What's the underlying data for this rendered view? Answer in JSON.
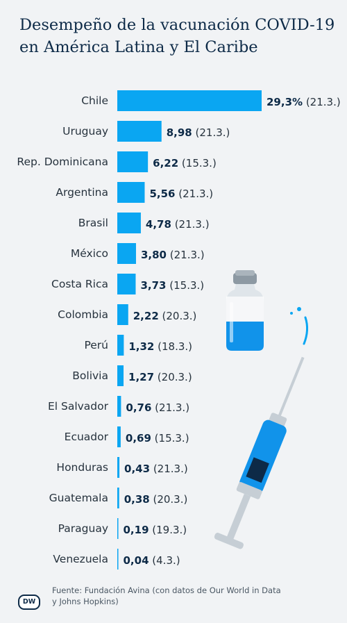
{
  "title_line1": "Desempeño de la vacunación COVID-19",
  "title_line2": "en América Latina y El Caribe",
  "source_line1": "Fuente: Fundación Avina (con datos de Our World in Data",
  "source_line2": "y Johns Hopkins)",
  "logo_text": "DW",
  "colors": {
    "bar": "#0aa6f2",
    "text_dark": "#0d2a47",
    "background": "#f1f3f5"
  },
  "chart_data": {
    "type": "bar",
    "orientation": "horizontal",
    "categories": [
      "Chile",
      "Uruguay",
      "Rep. Dominicana",
      "Argentina",
      "Brasil",
      "México",
      "Costa Rica",
      "Colombia",
      "Perú",
      "Bolivia",
      "El Salvador",
      "Ecuador",
      "Honduras",
      "Guatemala",
      "Paraguay",
      "Venezuela"
    ],
    "values": [
      29.3,
      8.98,
      6.22,
      5.56,
      4.78,
      3.8,
      3.73,
      2.22,
      1.32,
      1.27,
      0.76,
      0.69,
      0.43,
      0.38,
      0.19,
      0.04
    ],
    "value_labels": [
      "29,3%",
      "8,98",
      "6,22",
      "5,56",
      "4,78",
      "3,80",
      "3,73",
      "2,22",
      "1,32",
      "1,27",
      "0,76",
      "0,69",
      "0,43",
      "0,38",
      "0,19",
      "0,04"
    ],
    "dates": [
      "(21.3.)",
      "(21.3.)",
      "(15.3.)",
      "(21.3.)",
      "(21.3.)",
      "(21.3.)",
      "(15.3.)",
      "(20.3.)",
      "(18.3.)",
      "(20.3.)",
      "(21.3.)",
      "(15.3.)",
      "(21.3.)",
      "(20.3.)",
      "(19.3.)",
      "(4.3.)"
    ],
    "xlim": [
      0,
      29.3
    ],
    "grid": false,
    "legend": "none"
  }
}
